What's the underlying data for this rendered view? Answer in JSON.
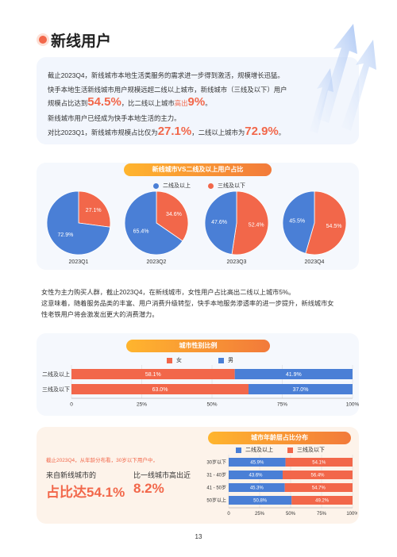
{
  "header": {
    "title": "新线用户"
  },
  "summary": {
    "line1": "截止2023Q4，新线城市本地生活类服务的需求进一步得到激活，规模增长迅猛。",
    "line2": "快手本地生活新线城市用户规模远超二线以上城市，新线城市（三线及以下）用户",
    "line3_a": "规模占比达到",
    "line3_big1": "54.5%",
    "line3_b": "，比二线以上城市",
    "line3_hl": "高出",
    "line3_big2": "9%",
    "line3_c": "。",
    "line4": "新线城市用户已经成为快手本地生活的主力。",
    "line5_a": "对比2023Q1，新线城市规模占比仅为",
    "line5_big1": "27.1%",
    "line5_b": "，二线以上城市为",
    "line5_big2": "72.9%",
    "line5_c": "。"
  },
  "pie_section": {
    "title": "新线城市VS二线及以上用户占比",
    "legend": [
      "二线及以上",
      "三线及以下"
    ]
  },
  "paragraph": {
    "line1": "女性为主力购买人群，截止2023Q4，在新线城市，女性用户占比高出二线以上城市5%。",
    "line2": "这意味着，随着服务品类的丰富、用户消费升级转型，快手本地服务渗透率的进一步提升，新线城市女",
    "line3": "性老铁用户将会激发出更大的消费潜力。"
  },
  "gender_section": {
    "title": "城市性别比例",
    "legend": [
      "女",
      "男"
    ]
  },
  "age_section": {
    "title": "城市年龄层占比分布",
    "legend": [
      "二线及以上",
      "三线及以下"
    ],
    "note": "截止2023Q4，从年龄分布看，30岁以下用户中，",
    "label1": "来自新线城市的",
    "big1": "占比达54.1%",
    "label2": "比一线城市高出近",
    "big2": "8.2%"
  },
  "page_number": "13",
  "colors": {
    "blue": "#4a7fd6",
    "orange": "#f2674a",
    "accent": "#f8963a"
  },
  "chart_data": [
    {
      "type": "pie",
      "categories": [
        "2023Q1",
        "2023Q2",
        "2023Q3",
        "2023Q4"
      ],
      "series": [
        {
          "name": "二线及以上",
          "values": [
            72.9,
            65.4,
            47.6,
            45.5
          ]
        },
        {
          "name": "三线及以下",
          "values": [
            27.1,
            34.6,
            52.4,
            54.5
          ]
        }
      ],
      "title": "新线城市VS二线及以上用户占比",
      "legend": "top-center"
    },
    {
      "type": "bar",
      "orientation": "horizontal-stacked",
      "categories": [
        "二线及以上",
        "三线及以下"
      ],
      "series": [
        {
          "name": "女",
          "values": [
            58.1,
            63.0
          ]
        },
        {
          "name": "男",
          "values": [
            41.9,
            37.0
          ]
        }
      ],
      "xticks": [
        "0",
        "25%",
        "50%",
        "75%",
        "100%"
      ],
      "xlim": [
        0,
        100
      ],
      "title": "城市性别比例",
      "legend": "top-center",
      "grid": true
    },
    {
      "type": "bar",
      "orientation": "horizontal-stacked",
      "categories": [
        "30岁以下",
        "31 - 40岁",
        "41 - 50岁",
        "50岁以上"
      ],
      "series": [
        {
          "name": "二线及以上",
          "values": [
            45.9,
            43.6,
            45.3,
            50.8
          ]
        },
        {
          "name": "三线及以下",
          "values": [
            54.1,
            56.4,
            54.7,
            49.2
          ]
        }
      ],
      "xticks": [
        "0",
        "25%",
        "50%",
        "75%",
        "100%"
      ],
      "xlim": [
        0,
        100
      ],
      "title": "城市年龄层占比分布",
      "legend": "top-center",
      "grid": true
    }
  ]
}
